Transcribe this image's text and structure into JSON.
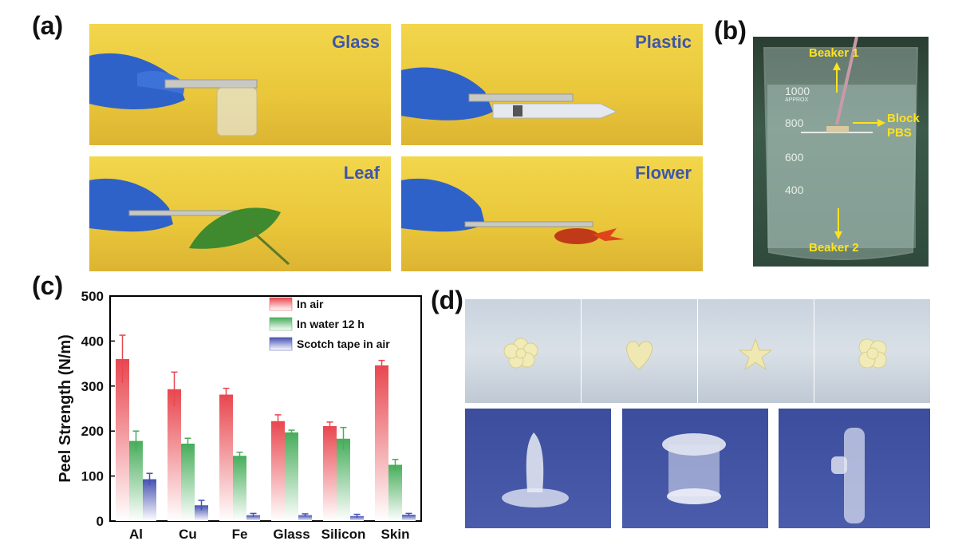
{
  "panel_labels": {
    "a": "(a)",
    "b": "(b)",
    "c": "(c)",
    "d": "(d)"
  },
  "panel_a": {
    "captions": [
      "Glass",
      "Plastic",
      "Leaf",
      "Flower"
    ]
  },
  "panel_b": {
    "annotations": {
      "beaker1": "Beaker 1",
      "block_pbs": "Block\nPBS",
      "beaker2": "Beaker 2"
    },
    "scale_marks": [
      "1000",
      "800",
      "600",
      "400"
    ],
    "approx": "APPROX"
  },
  "chart_data": {
    "type": "bar",
    "title": "",
    "xlabel": "",
    "ylabel": "Peel Strength (N/m)",
    "ylim": [
      0,
      500
    ],
    "yticks": [
      0,
      100,
      200,
      300,
      400,
      500
    ],
    "categories": [
      "Al",
      "Cu",
      "Fe",
      "Glass",
      "Silicon",
      "Skin"
    ],
    "series": [
      {
        "name": "In air",
        "color": "#e8474f",
        "values": [
          360,
          293,
          281,
          222,
          211,
          346
        ],
        "errors": [
          53,
          38,
          14,
          14,
          9,
          11
        ]
      },
      {
        "name": "In water 12 h",
        "color": "#46ad5a",
        "values": [
          178,
          172,
          145,
          197,
          183,
          125
        ],
        "errors": [
          22,
          12,
          8,
          5,
          25,
          12
        ]
      },
      {
        "name": "Scotch tape in air",
        "color": "#4552b2",
        "values": [
          93,
          35,
          13,
          13,
          11,
          14
        ],
        "errors": [
          13,
          11,
          4,
          3,
          4,
          3
        ]
      }
    ],
    "legend_position": "top-right"
  }
}
